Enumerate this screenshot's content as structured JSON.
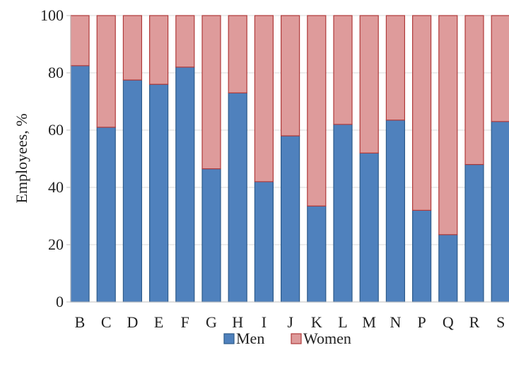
{
  "chart_data": {
    "type": "bar",
    "stacked": true,
    "categories": [
      "B",
      "C",
      "D",
      "E",
      "F",
      "G",
      "H",
      "I",
      "J",
      "K",
      "L",
      "M",
      "N",
      "P",
      "Q",
      "R",
      "S"
    ],
    "series": [
      {
        "name": "Men",
        "values": [
          82.5,
          61,
          77.5,
          76,
          82,
          46.5,
          73,
          42,
          58,
          33.5,
          62,
          52,
          63.5,
          32,
          23.5,
          48,
          63
        ],
        "color": "#4f81bd",
        "edge": "#2d5a8a"
      },
      {
        "name": "Women",
        "values": [
          17.5,
          39,
          22.5,
          24,
          18,
          53.5,
          27,
          58,
          42,
          66.5,
          38,
          48,
          36.5,
          68,
          76.5,
          52,
          37
        ],
        "color": "#de9b9b",
        "edge": "#b03a3a"
      }
    ],
    "ylabel": "Employees, %",
    "xlabel": "",
    "ylim": [
      0,
      100
    ],
    "yticks": [
      0,
      20,
      40,
      60,
      80,
      100
    ],
    "grid": true,
    "grid_color": "#d9d9d9",
    "legend_position": "bottom"
  }
}
